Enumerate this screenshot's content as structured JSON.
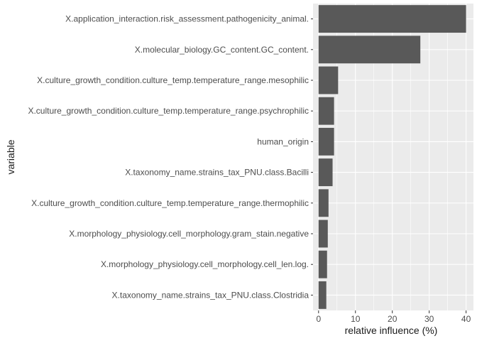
{
  "chart_data": {
    "type": "bar",
    "orientation": "horizontal",
    "title": "",
    "xlabel": "relative influence (%)",
    "ylabel": "variable",
    "xlim": [
      -1.5,
      42
    ],
    "xticks": [
      0,
      10,
      20,
      30,
      40
    ],
    "grid": true,
    "colors": {
      "bar": "#595959",
      "panel": "#ebebeb",
      "grid": "#ffffff"
    },
    "categories": [
      "X.application_interaction.risk_assessment.pathogenicity_animal.",
      "X.molecular_biology.GC_content.GC_content.",
      "X.culture_growth_condition.culture_temp.temperature_range.mesophilic",
      "X.culture_growth_condition.culture_temp.temperature_range.psychrophilic",
      "human_origin",
      "X.taxonomy_name.strains_tax_PNU.class.Bacilli",
      "X.culture_growth_condition.culture_temp.temperature_range.thermophilic",
      "X.morphology_physiology.cell_morphology.gram_stain.negative",
      "X.morphology_physiology.cell_morphology.cell_len.log.",
      "X.taxonomy_name.strains_tax_PNU.class.Clostridia"
    ],
    "values": [
      40.0,
      27.6,
      5.3,
      4.2,
      4.2,
      3.8,
      2.7,
      2.5,
      2.3,
      2.1
    ]
  }
}
